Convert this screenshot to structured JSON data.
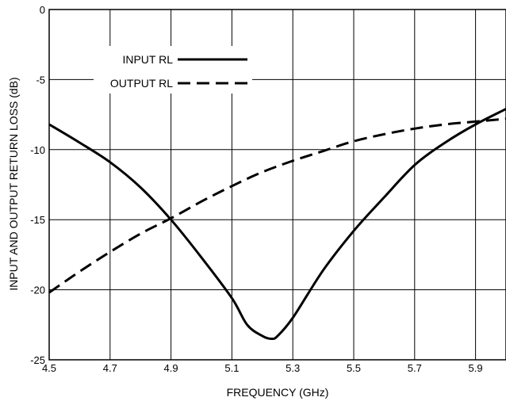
{
  "chart_data": {
    "type": "line",
    "xlabel": "FREQUENCY (GHz)",
    "ylabel": "INPUT AND OUTPUT RETURN LOSS (dB)",
    "xlim": [
      4.5,
      6.0
    ],
    "ylim": [
      -25,
      0
    ],
    "x_ticks": [
      4.5,
      4.7,
      4.9,
      5.1,
      5.3,
      5.5,
      5.7,
      5.9
    ],
    "x_tick_labels": [
      "4.5",
      "4.7",
      "4.9",
      "5.1",
      "5.3",
      "5.5",
      "5.7",
      "5.9"
    ],
    "y_ticks": [
      0,
      -5,
      -10,
      -15,
      -20,
      -25
    ],
    "y_tick_labels": [
      "0",
      "-5",
      "-10",
      "-15",
      "-20",
      "-25"
    ],
    "x_grid": [
      4.5,
      4.7,
      4.9,
      5.1,
      5.3,
      5.5,
      5.7,
      5.9,
      6.0
    ],
    "y_grid": [
      0,
      -5,
      -10,
      -15,
      -20,
      -25
    ],
    "legend_position": "top-left",
    "series": [
      {
        "name": "INPUT RL",
        "style": "solid",
        "color": "#000000",
        "x": [
          4.5,
          4.6,
          4.7,
          4.8,
          4.9,
          5.0,
          5.1,
          5.15,
          5.2,
          5.23,
          5.25,
          5.3,
          5.4,
          5.5,
          5.6,
          5.7,
          5.8,
          5.9,
          6.0
        ],
        "y": [
          -8.2,
          -9.5,
          -10.9,
          -12.7,
          -15.0,
          -17.7,
          -20.6,
          -22.5,
          -23.3,
          -23.5,
          -23.3,
          -22.0,
          -18.6,
          -15.8,
          -13.4,
          -11.1,
          -9.5,
          -8.2,
          -7.1
        ]
      },
      {
        "name": "OUTPUT RL",
        "style": "dashed",
        "color": "#000000",
        "x": [
          4.5,
          4.6,
          4.7,
          4.8,
          4.9,
          5.0,
          5.1,
          5.2,
          5.3,
          5.4,
          5.5,
          5.6,
          5.7,
          5.8,
          5.9,
          6.0
        ],
        "y": [
          -20.2,
          -18.7,
          -17.3,
          -16.0,
          -14.9,
          -13.7,
          -12.6,
          -11.6,
          -10.8,
          -10.1,
          -9.4,
          -8.9,
          -8.5,
          -8.2,
          -8.0,
          -7.8
        ]
      }
    ]
  }
}
